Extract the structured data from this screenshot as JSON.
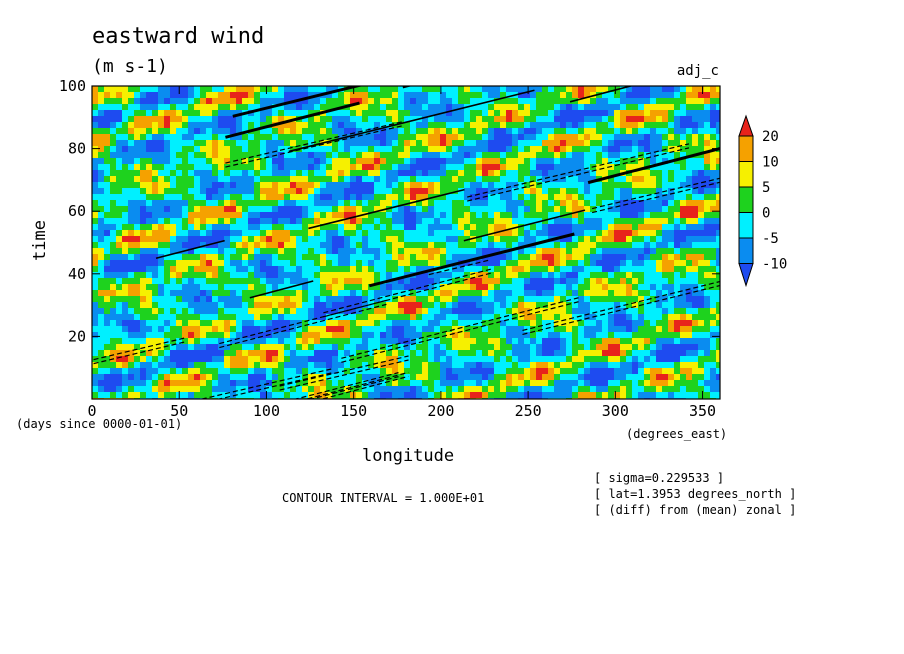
{
  "chart_data": {
    "type": "heatmap",
    "title": "eastward wind",
    "units": "(m s-1)",
    "experiment": "adj_c",
    "xlabel": "longitude",
    "ylabel": "time",
    "x_units": "(degrees_east)",
    "y_units": "(days since 0000-01-01)",
    "xlim": [
      0,
      360
    ],
    "ylim": [
      0,
      100
    ],
    "x_ticks": [
      0,
      50,
      100,
      150,
      200,
      250,
      300,
      350
    ],
    "y_ticks": [
      20,
      40,
      60,
      80,
      100
    ],
    "colorbar": {
      "levels": [
        20,
        10,
        5,
        0,
        -5,
        -10
      ],
      "colors": [
        "#e8231b",
        "#f5a100",
        "#f6f000",
        "#1ed21e",
        "#00f0ff",
        "#0a8cf0",
        "#1e4bf0"
      ]
    },
    "contour_interval_text": "CONTOUR INTERVAL = 1.000E+01",
    "notes": [
      "[ sigma=0.229533 ]",
      "[ lat=1.3953 degrees_north ]",
      "[ (diff) from (mean) zonal ]"
    ]
  }
}
